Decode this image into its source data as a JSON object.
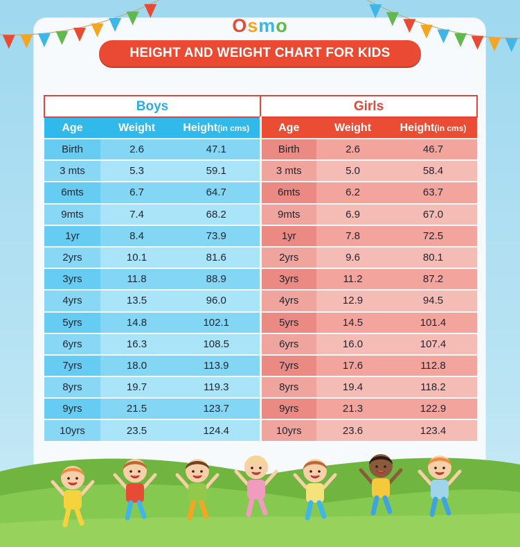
{
  "brand": {
    "logo_text": "Osmo",
    "logo_letters": [
      "O",
      "s",
      "m",
      "o"
    ]
  },
  "title": "HEIGHT AND WEIGHT CHART FOR KIDS",
  "colors": {
    "accent_red": "#ea4a31",
    "boys_blue": "#31b9ec",
    "boys_row": "#83d7f4",
    "girls_row": "#f2a49d",
    "ground_green": "#7cc24a"
  },
  "chart_data": {
    "type": "table",
    "groups": [
      "Boys",
      "Girls"
    ],
    "columns": [
      {
        "main": "Age",
        "unit": ""
      },
      {
        "main": "Weight",
        "unit": ""
      },
      {
        "main": "Height",
        "unit": "(in cms)"
      }
    ],
    "rows": [
      {
        "age": "Birth",
        "boys_weight": "2.6",
        "boys_height": "47.1",
        "girls_age": "Birth",
        "girls_weight": "2.6",
        "girls_height": "46.7"
      },
      {
        "age": "3 mts",
        "boys_weight": "5.3",
        "boys_height": "59.1",
        "girls_age": "3 mts",
        "girls_weight": "5.0",
        "girls_height": "58.4"
      },
      {
        "age": "6mts",
        "boys_weight": "6.7",
        "boys_height": "64.7",
        "girls_age": "6mts",
        "girls_weight": "6.2",
        "girls_height": "63.7"
      },
      {
        "age": "9mts",
        "boys_weight": "7.4",
        "boys_height": "68.2",
        "girls_age": "9mts",
        "girls_weight": "6.9",
        "girls_height": "67.0"
      },
      {
        "age": "1yr",
        "boys_weight": "8.4",
        "boys_height": "73.9",
        "girls_age": "1yr",
        "girls_weight": "7.8",
        "girls_height": "72.5"
      },
      {
        "age": "2yrs",
        "boys_weight": "10.1",
        "boys_height": "81.6",
        "girls_age": "2yrs",
        "girls_weight": "9.6",
        "girls_height": "80.1"
      },
      {
        "age": "3yrs",
        "boys_weight": "11.8",
        "boys_height": "88.9",
        "girls_age": "3yrs",
        "girls_weight": "11.2",
        "girls_height": "87.2"
      },
      {
        "age": "4yrs",
        "boys_weight": "13.5",
        "boys_height": "96.0",
        "girls_age": "4yrs",
        "girls_weight": "12.9",
        "girls_height": "94.5"
      },
      {
        "age": "5yrs",
        "boys_weight": "14.8",
        "boys_height": "102.1",
        "girls_age": "5yrs",
        "girls_weight": "14.5",
        "girls_height": "101.4"
      },
      {
        "age": "6yrs",
        "boys_weight": "16.3",
        "boys_height": "108.5",
        "girls_age": "6yrs",
        "girls_weight": "16.0",
        "girls_height": "107.4"
      },
      {
        "age": "7yrs",
        "boys_weight": "18.0",
        "boys_height": "113.9",
        "girls_age": "7yrs",
        "girls_weight": "17.6",
        "girls_height": "112.8"
      },
      {
        "age": "8yrs",
        "boys_weight": "19.7",
        "boys_height": "119.3",
        "girls_age": "8yrs",
        "girls_weight": "19.4",
        "girls_height": "118.2"
      },
      {
        "age": "9yrs",
        "boys_weight": "21.5",
        "boys_height": "123.7",
        "girls_age": "9yrs",
        "girls_weight": "21.3",
        "girls_height": "122.9"
      },
      {
        "age": "10yrs",
        "boys_weight": "23.5",
        "boys_height": "124.4",
        "girls_age": "10yrs",
        "girls_weight": "23.6",
        "girls_height": "123.4"
      }
    ]
  },
  "decor": {
    "bunting_colors": [
      "#e84b33",
      "#f4a623",
      "#3fb6e8",
      "#61b84c"
    ],
    "illustration": "happy-jumping-kids",
    "kid_count": 7
  }
}
